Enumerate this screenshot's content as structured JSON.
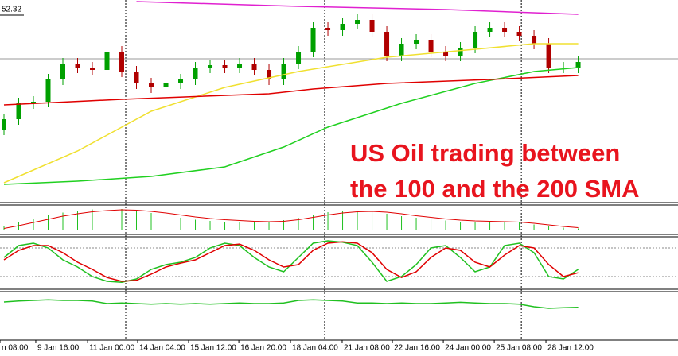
{
  "chart_data": [
    {
      "type": "candlestick",
      "annotations": [
        "US Oil trading between",
        "the 100 and the 200 SMA"
      ],
      "annotation_color": "#e8141e",
      "open": [
        49.3,
        49.56,
        49.96,
        50.0,
        50.56,
        50.96,
        50.86,
        50.8,
        51.26,
        50.76,
        50.46,
        50.36,
        50.46,
        50.56,
        50.86,
        50.92,
        50.86,
        50.96,
        50.8,
        50.56,
        50.96,
        51.26,
        51.86,
        51.8,
        51.96,
        52.06,
        51.76,
        51.16,
        51.46,
        51.56,
        51.26,
        51.16,
        51.36,
        51.76,
        51.86,
        51.76,
        51.66,
        51.46,
        50.86,
        50.86
      ],
      "high": [
        49.7,
        50.1,
        50.14,
        50.7,
        51.1,
        51.1,
        51.0,
        51.4,
        51.4,
        50.9,
        50.6,
        50.6,
        50.7,
        51.0,
        51.06,
        51.06,
        51.1,
        51.1,
        50.94,
        51.1,
        51.4,
        52.0,
        52.0,
        52.1,
        52.2,
        52.2,
        51.9,
        51.6,
        51.7,
        51.7,
        51.4,
        51.5,
        51.9,
        52.0,
        52.0,
        51.9,
        51.8,
        51.6,
        51.0,
        51.14
      ],
      "low": [
        49.16,
        49.42,
        49.82,
        49.86,
        50.42,
        50.72,
        50.66,
        50.66,
        50.62,
        50.32,
        50.22,
        50.22,
        50.32,
        50.42,
        50.72,
        50.72,
        50.72,
        50.66,
        50.42,
        50.42,
        50.82,
        51.12,
        51.66,
        51.66,
        51.82,
        51.62,
        51.02,
        51.02,
        51.32,
        51.12,
        51.02,
        51.02,
        51.22,
        51.62,
        51.62,
        51.52,
        51.32,
        50.72,
        50.72,
        50.72
      ],
      "close": [
        49.56,
        49.96,
        50.0,
        50.56,
        50.96,
        50.86,
        50.8,
        51.26,
        50.76,
        50.46,
        50.36,
        50.46,
        50.56,
        50.86,
        50.92,
        50.86,
        50.96,
        50.8,
        50.56,
        50.96,
        51.26,
        51.86,
        51.8,
        51.96,
        52.06,
        51.76,
        51.16,
        51.46,
        51.56,
        51.26,
        51.16,
        51.36,
        51.76,
        51.86,
        51.76,
        51.66,
        51.46,
        50.86,
        50.86,
        51.0
      ],
      "up_color": "#00a000",
      "down_color": "#b00000",
      "ylim": [
        47.92,
        52.56
      ],
      "yticks": [
        52.32
      ],
      "price_line": 51.08,
      "xlim": [
        -0.27,
        45.78
      ],
      "xticks": [
        {
          "value": -0.27,
          "label": "n 08:00"
        },
        {
          "value": 2.16,
          "label": "9 Jan 16:00"
        },
        {
          "value": 5.68,
          "label": "11 Jan 00:00"
        },
        {
          "value": 9.08,
          "label": "14 Jan 04:00"
        },
        {
          "value": 12.54,
          "label": "15 Jan 12:00"
        },
        {
          "value": 15.95,
          "label": "16 Jan 20:00"
        },
        {
          "value": 19.46,
          "label": "18 Jan 04:00"
        },
        {
          "value": 22.97,
          "label": "21 Jan 08:00"
        },
        {
          "value": 26.38,
          "label": "22 Jan 16:00"
        },
        {
          "value": 29.84,
          "label": "24 Jan 00:00"
        },
        {
          "value": 33.3,
          "label": "25 Jan 08:00"
        },
        {
          "value": 36.81,
          "label": "28 Jan 12:00"
        }
      ],
      "separators": [
        8.27,
        21.78,
        35.14
      ],
      "series": [
        {
          "color": "#e020d0",
          "x": [
            9,
            20,
            30,
            39
          ],
          "values": [
            52.52,
            52.4,
            52.32,
            52.2
          ]
        },
        {
          "color": "#f0e030",
          "x": [
            0,
            5,
            10,
            15,
            20,
            26,
            32,
            36,
            39
          ],
          "values": [
            47.96,
            48.76,
            49.76,
            50.36,
            50.76,
            51.12,
            51.32,
            51.46,
            51.46
          ]
        },
        {
          "color": "#20d020",
          "x": [
            0,
            5,
            10,
            15,
            19,
            22,
            27,
            32,
            36,
            39
          ],
          "values": [
            47.92,
            48.0,
            48.12,
            48.36,
            48.86,
            49.36,
            49.96,
            50.46,
            50.76,
            50.86
          ]
        },
        {
          "color": "#e00000",
          "x": [
            0,
            8,
            18,
            21,
            26,
            33,
            39
          ],
          "values": [
            49.92,
            50.06,
            50.2,
            50.32,
            50.46,
            50.56,
            50.66
          ]
        }
      ]
    },
    {
      "type": "bar",
      "color": "#20c020",
      "ylim": [
        0,
        0.6
      ],
      "values": [
        0.1,
        0.2,
        0.3,
        0.38,
        0.45,
        0.5,
        0.53,
        0.54,
        0.54,
        0.5,
        0.44,
        0.38,
        0.32,
        0.27,
        0.24,
        0.22,
        0.21,
        0.21,
        0.22,
        0.26,
        0.32,
        0.4,
        0.46,
        0.5,
        0.5,
        0.48,
        0.42,
        0.36,
        0.32,
        0.28,
        0.25,
        0.22,
        0.21,
        0.22,
        0.22,
        0.2,
        0.15,
        0.1,
        0.07,
        0.05
      ],
      "series": [
        {
          "color": "#e00000",
          "values": [
            0.05,
            0.12,
            0.2,
            0.28,
            0.36,
            0.42,
            0.47,
            0.5,
            0.52,
            0.51,
            0.48,
            0.44,
            0.39,
            0.34,
            0.3,
            0.27,
            0.25,
            0.23,
            0.22,
            0.23,
            0.27,
            0.33,
            0.39,
            0.44,
            0.47,
            0.48,
            0.46,
            0.42,
            0.37,
            0.33,
            0.29,
            0.26,
            0.24,
            0.23,
            0.22,
            0.21,
            0.18,
            0.14,
            0.1,
            0.07
          ]
        }
      ]
    },
    {
      "type": "line",
      "ylim": [
        0,
        100
      ],
      "levels": [
        20,
        80
      ],
      "series": [
        {
          "color": "#20c020",
          "values": [
            60,
            85,
            90,
            80,
            55,
            40,
            20,
            10,
            8,
            15,
            35,
            45,
            50,
            60,
            80,
            90,
            85,
            60,
            40,
            30,
            60,
            90,
            95,
            92,
            85,
            50,
            10,
            20,
            45,
            80,
            85,
            60,
            30,
            40,
            85,
            90,
            70,
            20,
            15,
            35
          ]
        },
        {
          "color": "#e00000",
          "values": [
            55,
            75,
            85,
            85,
            70,
            50,
            35,
            18,
            10,
            12,
            25,
            40,
            48,
            55,
            70,
            85,
            88,
            75,
            55,
            40,
            45,
            75,
            90,
            93,
            90,
            70,
            35,
            18,
            30,
            60,
            80,
            75,
            50,
            40,
            65,
            85,
            80,
            45,
            20,
            28
          ]
        }
      ]
    },
    {
      "type": "line",
      "ylim": [
        0,
        100
      ],
      "series": [
        {
          "color": "#20c020",
          "values": [
            75,
            78,
            80,
            82,
            80,
            80,
            78,
            70,
            72,
            70,
            68,
            70,
            68,
            70,
            68,
            70,
            72,
            70,
            70,
            72,
            80,
            82,
            80,
            78,
            72,
            72,
            70,
            72,
            70,
            70,
            72,
            74,
            72,
            70,
            70,
            68,
            60,
            55,
            57,
            58
          ]
        }
      ]
    }
  ]
}
